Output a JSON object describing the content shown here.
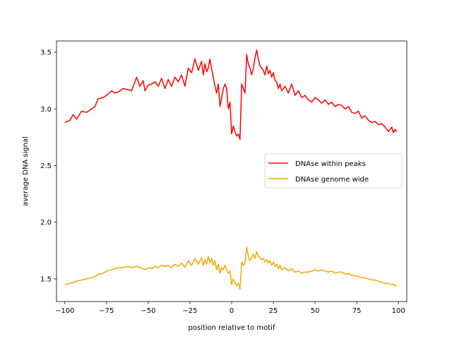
{
  "chart_data": {
    "type": "line",
    "title": "",
    "xlabel": "position relative to motif",
    "ylabel": "average DNA signal",
    "xlim": [
      -105,
      105
    ],
    "ylim": [
      1.3,
      3.6
    ],
    "xticks": [
      -100,
      -75,
      -50,
      -25,
      0,
      25,
      50,
      75,
      100
    ],
    "xtick_labels": [
      "−100",
      "−75",
      "−50",
      "−25",
      "0",
      "25",
      "50",
      "75",
      "100"
    ],
    "yticks": [
      1.5,
      2.0,
      2.5,
      3.0,
      3.5
    ],
    "ytick_labels": [
      "1.5",
      "2.0",
      "2.5",
      "3.0",
      "3.5"
    ],
    "legend": "center-right",
    "grid": false,
    "series": [
      {
        "name": "DNAse within peaks",
        "color": "#ff0000",
        "x": [
          -100,
          -97,
          -95,
          -93,
          -90,
          -87,
          -84,
          -82,
          -80,
          -77,
          -75,
          -72,
          -70,
          -68,
          -65,
          -62,
          -60,
          -57,
          -55,
          -53,
          -52,
          -50,
          -48,
          -46,
          -44,
          -42,
          -40,
          -38,
          -36,
          -34,
          -32,
          -30,
          -28,
          -26,
          -24,
          -22,
          -20,
          -18,
          -17,
          -16,
          -15,
          -14,
          -13,
          -12,
          -11,
          -10,
          -9,
          -8,
          -7,
          -6,
          -5,
          -4,
          -3,
          -2,
          -1,
          0,
          1,
          2,
          3,
          4,
          5,
          6,
          7,
          8,
          9,
          10,
          11,
          12,
          13,
          14,
          15,
          16,
          17,
          18,
          19,
          20,
          21,
          22,
          23,
          24,
          25,
          26,
          27,
          28,
          29,
          30,
          32,
          34,
          36,
          38,
          40,
          42,
          44,
          46,
          48,
          50,
          52,
          54,
          56,
          58,
          60,
          62,
          64,
          66,
          68,
          70,
          72,
          74,
          76,
          78,
          80,
          82,
          84,
          86,
          88,
          90,
          92,
          94,
          96,
          97,
          98,
          99
        ],
        "values": [
          2.88,
          2.9,
          2.95,
          2.91,
          2.98,
          2.97,
          3.0,
          3.02,
          3.09,
          3.1,
          3.12,
          3.16,
          3.14,
          3.15,
          3.18,
          3.17,
          3.16,
          3.28,
          3.2,
          3.25,
          3.16,
          3.21,
          3.22,
          3.24,
          3.2,
          3.27,
          3.18,
          3.26,
          3.2,
          3.28,
          3.24,
          3.3,
          3.2,
          3.36,
          3.32,
          3.44,
          3.34,
          3.42,
          3.3,
          3.4,
          3.33,
          3.36,
          3.44,
          3.35,
          3.28,
          3.2,
          3.14,
          3.22,
          3.02,
          3.1,
          3.18,
          3.22,
          3.18,
          3.0,
          3.06,
          2.78,
          2.85,
          2.8,
          2.76,
          2.78,
          2.73,
          3.22,
          3.18,
          3.14,
          3.48,
          3.4,
          3.36,
          3.3,
          3.36,
          3.45,
          3.52,
          3.44,
          3.38,
          3.36,
          3.34,
          3.3,
          3.38,
          3.31,
          3.34,
          3.28,
          3.32,
          3.25,
          3.24,
          3.18,
          3.22,
          3.16,
          3.2,
          3.14,
          3.22,
          3.12,
          3.16,
          3.1,
          3.12,
          3.08,
          3.06,
          3.1,
          3.08,
          3.05,
          3.08,
          3.04,
          3.06,
          3.02,
          3.04,
          3.03,
          3.0,
          3.02,
          2.97,
          2.96,
          2.98,
          2.92,
          2.94,
          2.9,
          2.88,
          2.89,
          2.86,
          2.87,
          2.84,
          2.8,
          2.84,
          2.79,
          2.82,
          2.8
        ]
      },
      {
        "name": "DNAse genome wide",
        "color": "#ffa500",
        "x": [
          -100,
          -97,
          -95,
          -93,
          -90,
          -87,
          -84,
          -82,
          -80,
          -77,
          -75,
          -72,
          -70,
          -68,
          -65,
          -62,
          -60,
          -57,
          -55,
          -53,
          -52,
          -50,
          -48,
          -46,
          -44,
          -42,
          -40,
          -38,
          -36,
          -34,
          -32,
          -30,
          -28,
          -26,
          -24,
          -22,
          -20,
          -18,
          -17,
          -16,
          -15,
          -14,
          -13,
          -12,
          -11,
          -10,
          -9,
          -8,
          -7,
          -6,
          -5,
          -4,
          -3,
          -2,
          -1,
          0,
          1,
          2,
          3,
          4,
          5,
          6,
          7,
          8,
          9,
          10,
          11,
          12,
          13,
          14,
          15,
          16,
          17,
          18,
          19,
          20,
          21,
          22,
          23,
          24,
          25,
          26,
          27,
          28,
          29,
          30,
          32,
          34,
          36,
          38,
          40,
          42,
          44,
          46,
          48,
          50,
          52,
          54,
          56,
          58,
          60,
          62,
          64,
          66,
          68,
          70,
          72,
          74,
          76,
          78,
          80,
          82,
          84,
          86,
          88,
          90,
          92,
          94,
          96,
          97,
          98,
          99
        ],
        "values": [
          1.45,
          1.46,
          1.47,
          1.48,
          1.49,
          1.5,
          1.51,
          1.52,
          1.54,
          1.55,
          1.57,
          1.58,
          1.59,
          1.6,
          1.6,
          1.61,
          1.6,
          1.61,
          1.6,
          1.59,
          1.58,
          1.6,
          1.59,
          1.61,
          1.6,
          1.62,
          1.61,
          1.62,
          1.6,
          1.63,
          1.61,
          1.64,
          1.6,
          1.66,
          1.62,
          1.68,
          1.63,
          1.69,
          1.62,
          1.67,
          1.63,
          1.7,
          1.64,
          1.68,
          1.62,
          1.66,
          1.58,
          1.63,
          1.55,
          1.6,
          1.58,
          1.62,
          1.58,
          1.55,
          1.57,
          1.45,
          1.5,
          1.47,
          1.44,
          1.46,
          1.41,
          1.65,
          1.62,
          1.64,
          1.78,
          1.7,
          1.66,
          1.69,
          1.72,
          1.68,
          1.74,
          1.7,
          1.69,
          1.67,
          1.68,
          1.65,
          1.67,
          1.64,
          1.66,
          1.62,
          1.65,
          1.61,
          1.63,
          1.59,
          1.62,
          1.58,
          1.6,
          1.57,
          1.59,
          1.56,
          1.57,
          1.55,
          1.56,
          1.56,
          1.57,
          1.58,
          1.57,
          1.58,
          1.57,
          1.56,
          1.57,
          1.55,
          1.56,
          1.56,
          1.54,
          1.55,
          1.53,
          1.53,
          1.52,
          1.51,
          1.51,
          1.5,
          1.49,
          1.49,
          1.48,
          1.47,
          1.46,
          1.46,
          1.45,
          1.45,
          1.44,
          1.44
        ]
      }
    ]
  }
}
